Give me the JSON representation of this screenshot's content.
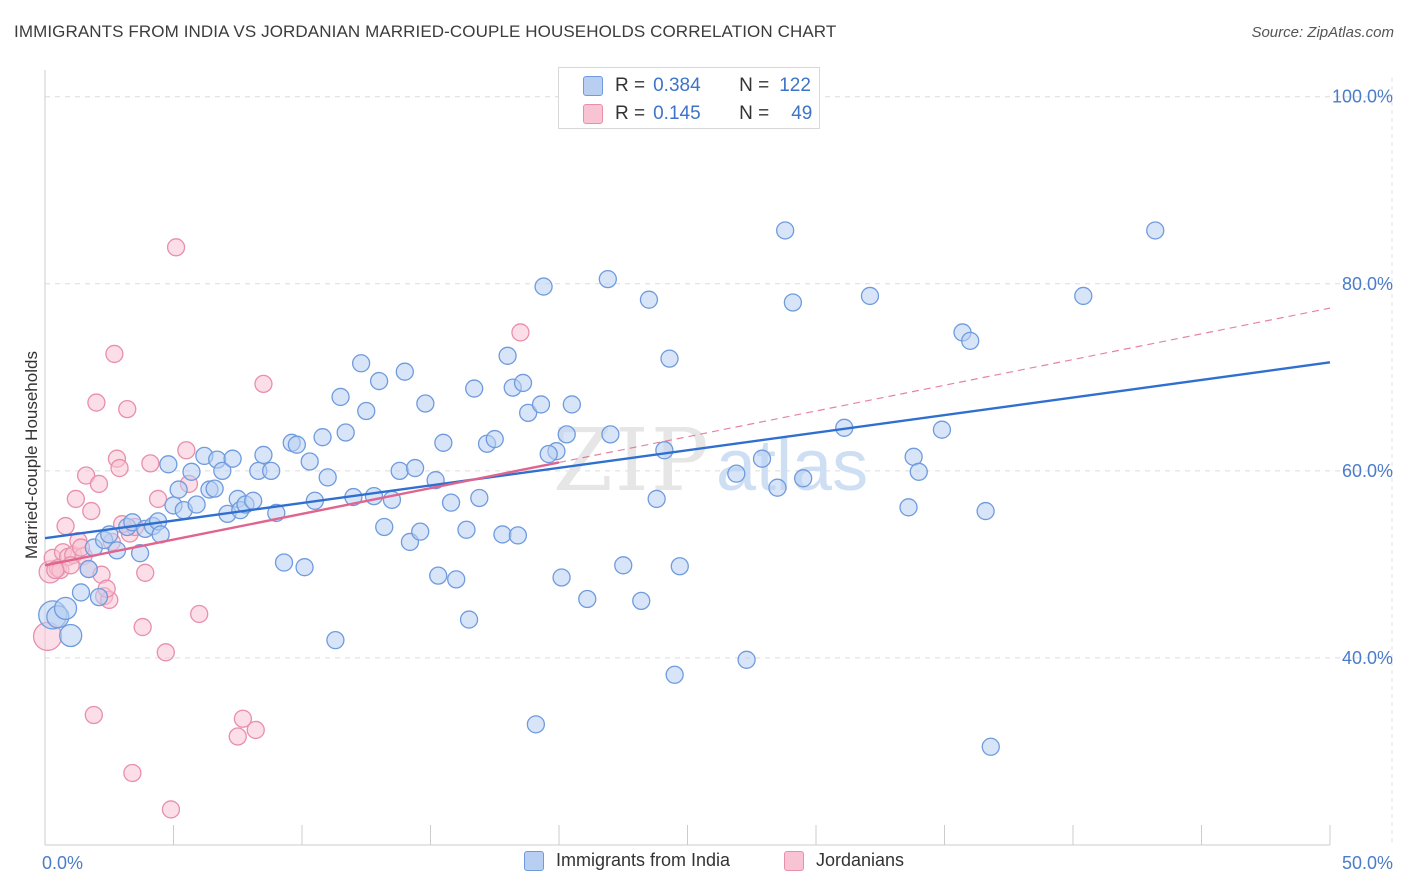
{
  "header": {
    "title": "IMMIGRANTS FROM INDIA VS JORDANIAN MARRIED-COUPLE HOUSEHOLDS CORRELATION CHART",
    "source": "Source: ZipAtlas.com"
  },
  "watermark": {
    "zip": "ZIP",
    "atlas": "atlas"
  },
  "legend": {
    "r_label": "R =",
    "n_label": "N =",
    "rows": [
      {
        "r": "0.384",
        "n": "122"
      },
      {
        "r": "0.145",
        "n": "49"
      }
    ]
  },
  "chart_data": {
    "type": "scatter",
    "title": "IMMIGRANTS FROM INDIA VS JORDANIAN MARRIED-COUPLE HOUSEHOLDS CORRELATION CHART",
    "xlabel": "",
    "ylabel": "Married-couple Households",
    "xlim": [
      0,
      50
    ],
    "ylim": [
      20,
      102
    ],
    "x_tick_labels": [
      "0.0%",
      "50.0%"
    ],
    "y_ticks": [
      40,
      60,
      80,
      100
    ],
    "y_tick_labels": [
      "40.0%",
      "60.0%",
      "80.0%",
      "100.0%"
    ],
    "grid": true,
    "legend_position": "top-center",
    "colors": {
      "india_fill": "#b8cff2",
      "india_stroke": "#6f9bde",
      "india_line": "#2f6fd0",
      "jordan_fill": "#f8c3d3",
      "jordan_stroke": "#e88fab",
      "jordan_line": "#e0648e"
    },
    "series": [
      {
        "name": "Immigrants from India",
        "r": 0.384,
        "n": 122,
        "trend": {
          "x": [
            0,
            50
          ],
          "y": [
            52.8,
            71.6
          ]
        },
        "points": [
          {
            "x": 0.3,
            "y": 44.6,
            "s": 3
          },
          {
            "x": 0.5,
            "y": 44.4,
            "s": 2
          },
          {
            "x": 0.8,
            "y": 45.3,
            "s": 2
          },
          {
            "x": 1.0,
            "y": 42.4,
            "s": 2
          },
          {
            "x": 1.4,
            "y": 47.0,
            "s": 1
          },
          {
            "x": 1.7,
            "y": 49.5,
            "s": 1
          },
          {
            "x": 1.9,
            "y": 51.8,
            "s": 1
          },
          {
            "x": 2.1,
            "y": 46.5,
            "s": 1
          },
          {
            "x": 2.3,
            "y": 52.6,
            "s": 1
          },
          {
            "x": 2.5,
            "y": 53.2,
            "s": 1
          },
          {
            "x": 2.8,
            "y": 51.5,
            "s": 1
          },
          {
            "x": 3.2,
            "y": 54.0,
            "s": 1
          },
          {
            "x": 3.4,
            "y": 54.5,
            "s": 1
          },
          {
            "x": 3.7,
            "y": 51.2,
            "s": 1
          },
          {
            "x": 3.9,
            "y": 53.8,
            "s": 1
          },
          {
            "x": 4.2,
            "y": 54.1,
            "s": 1
          },
          {
            "x": 4.4,
            "y": 54.6,
            "s": 1
          },
          {
            "x": 4.5,
            "y": 53.2,
            "s": 1
          },
          {
            "x": 4.8,
            "y": 60.7,
            "s": 1
          },
          {
            "x": 5.0,
            "y": 56.3,
            "s": 1
          },
          {
            "x": 5.2,
            "y": 58.0,
            "s": 1
          },
          {
            "x": 5.4,
            "y": 55.8,
            "s": 1
          },
          {
            "x": 5.7,
            "y": 59.9,
            "s": 1
          },
          {
            "x": 5.9,
            "y": 56.4,
            "s": 1
          },
          {
            "x": 6.2,
            "y": 61.6,
            "s": 1
          },
          {
            "x": 6.4,
            "y": 58.0,
            "s": 1
          },
          {
            "x": 6.6,
            "y": 58.1,
            "s": 1
          },
          {
            "x": 6.7,
            "y": 61.2,
            "s": 1
          },
          {
            "x": 6.9,
            "y": 60.0,
            "s": 1
          },
          {
            "x": 7.1,
            "y": 55.4,
            "s": 1
          },
          {
            "x": 7.3,
            "y": 61.3,
            "s": 1
          },
          {
            "x": 7.5,
            "y": 57.0,
            "s": 1
          },
          {
            "x": 7.6,
            "y": 55.8,
            "s": 1
          },
          {
            "x": 7.8,
            "y": 56.4,
            "s": 1
          },
          {
            "x": 8.1,
            "y": 56.8,
            "s": 1
          },
          {
            "x": 8.3,
            "y": 60.0,
            "s": 1
          },
          {
            "x": 8.5,
            "y": 61.7,
            "s": 1
          },
          {
            "x": 8.8,
            "y": 60.0,
            "s": 1
          },
          {
            "x": 9.0,
            "y": 55.5,
            "s": 1
          },
          {
            "x": 9.3,
            "y": 50.2,
            "s": 1
          },
          {
            "x": 9.6,
            "y": 63.0,
            "s": 1
          },
          {
            "x": 9.8,
            "y": 62.8,
            "s": 1
          },
          {
            "x": 10.1,
            "y": 49.7,
            "s": 1
          },
          {
            "x": 10.3,
            "y": 61.0,
            "s": 1
          },
          {
            "x": 10.5,
            "y": 56.8,
            "s": 1
          },
          {
            "x": 10.8,
            "y": 63.6,
            "s": 1
          },
          {
            "x": 11.0,
            "y": 59.3,
            "s": 1
          },
          {
            "x": 11.3,
            "y": 41.9,
            "s": 1
          },
          {
            "x": 11.5,
            "y": 67.9,
            "s": 1
          },
          {
            "x": 11.7,
            "y": 64.1,
            "s": 1
          },
          {
            "x": 12.0,
            "y": 57.2,
            "s": 1
          },
          {
            "x": 12.3,
            "y": 71.5,
            "s": 1
          },
          {
            "x": 12.5,
            "y": 66.4,
            "s": 1
          },
          {
            "x": 12.8,
            "y": 57.3,
            "s": 1
          },
          {
            "x": 13.0,
            "y": 69.6,
            "s": 1
          },
          {
            "x": 13.2,
            "y": 54.0,
            "s": 1
          },
          {
            "x": 13.5,
            "y": 56.9,
            "s": 1
          },
          {
            "x": 13.8,
            "y": 60.0,
            "s": 1
          },
          {
            "x": 14.0,
            "y": 70.6,
            "s": 1
          },
          {
            "x": 14.2,
            "y": 52.4,
            "s": 1
          },
          {
            "x": 14.4,
            "y": 60.3,
            "s": 1
          },
          {
            "x": 14.6,
            "y": 53.5,
            "s": 1
          },
          {
            "x": 14.8,
            "y": 67.2,
            "s": 1
          },
          {
            "x": 15.2,
            "y": 59.0,
            "s": 1
          },
          {
            "x": 15.3,
            "y": 48.8,
            "s": 1
          },
          {
            "x": 15.5,
            "y": 63.0,
            "s": 1
          },
          {
            "x": 15.8,
            "y": 56.6,
            "s": 1
          },
          {
            "x": 16.0,
            "y": 48.4,
            "s": 1
          },
          {
            "x": 16.4,
            "y": 53.7,
            "s": 1
          },
          {
            "x": 16.5,
            "y": 44.1,
            "s": 1
          },
          {
            "x": 16.7,
            "y": 68.8,
            "s": 1
          },
          {
            "x": 16.9,
            "y": 57.1,
            "s": 1
          },
          {
            "x": 17.2,
            "y": 62.9,
            "s": 1
          },
          {
            "x": 17.5,
            "y": 63.4,
            "s": 1
          },
          {
            "x": 17.8,
            "y": 53.2,
            "s": 1
          },
          {
            "x": 18.0,
            "y": 72.3,
            "s": 1
          },
          {
            "x": 18.2,
            "y": 68.9,
            "s": 1
          },
          {
            "x": 18.4,
            "y": 53.1,
            "s": 1
          },
          {
            "x": 18.6,
            "y": 69.4,
            "s": 1
          },
          {
            "x": 18.8,
            "y": 66.2,
            "s": 1
          },
          {
            "x": 19.1,
            "y": 32.9,
            "s": 1
          },
          {
            "x": 19.3,
            "y": 67.1,
            "s": 1
          },
          {
            "x": 19.4,
            "y": 79.7,
            "s": 1
          },
          {
            "x": 19.9,
            "y": 62.1,
            "s": 1
          },
          {
            "x": 20.1,
            "y": 48.6,
            "s": 1
          },
          {
            "x": 20.3,
            "y": 63.9,
            "s": 1
          },
          {
            "x": 20.5,
            "y": 67.1,
            "s": 1
          },
          {
            "x": 21.1,
            "y": 46.3,
            "s": 1
          },
          {
            "x": 21.9,
            "y": 80.5,
            "s": 1
          },
          {
            "x": 22.0,
            "y": 63.9,
            "s": 1
          },
          {
            "x": 22.5,
            "y": 49.9,
            "s": 1
          },
          {
            "x": 23.2,
            "y": 46.1,
            "s": 1
          },
          {
            "x": 23.5,
            "y": 78.3,
            "s": 1
          },
          {
            "x": 23.8,
            "y": 57.0,
            "s": 1
          },
          {
            "x": 24.1,
            "y": 62.2,
            "s": 1
          },
          {
            "x": 24.3,
            "y": 72.0,
            "s": 1
          },
          {
            "x": 24.5,
            "y": 38.2,
            "s": 1
          },
          {
            "x": 24.7,
            "y": 49.8,
            "s": 1
          },
          {
            "x": 26.9,
            "y": 59.7,
            "s": 1
          },
          {
            "x": 27.3,
            "y": 39.8,
            "s": 1
          },
          {
            "x": 27.9,
            "y": 61.3,
            "s": 1
          },
          {
            "x": 28.5,
            "y": 58.2,
            "s": 1
          },
          {
            "x": 28.8,
            "y": 85.7,
            "s": 1
          },
          {
            "x": 29.1,
            "y": 78.0,
            "s": 1
          },
          {
            "x": 29.5,
            "y": 59.2,
            "s": 1
          },
          {
            "x": 31.1,
            "y": 64.6,
            "s": 1
          },
          {
            "x": 32.1,
            "y": 78.7,
            "s": 1
          },
          {
            "x": 33.6,
            "y": 56.1,
            "s": 1
          },
          {
            "x": 33.8,
            "y": 61.5,
            "s": 1
          },
          {
            "x": 34.0,
            "y": 59.9,
            "s": 1
          },
          {
            "x": 34.9,
            "y": 64.4,
            "s": 1
          },
          {
            "x": 35.7,
            "y": 74.8,
            "s": 1
          },
          {
            "x": 36.0,
            "y": 73.9,
            "s": 1
          },
          {
            "x": 36.6,
            "y": 55.7,
            "s": 1
          },
          {
            "x": 36.8,
            "y": 30.5,
            "s": 1
          },
          {
            "x": 40.4,
            "y": 78.7,
            "s": 1
          },
          {
            "x": 43.2,
            "y": 85.7,
            "s": 1
          },
          {
            "x": 19.6,
            "y": 61.8,
            "s": 1
          }
        ]
      },
      {
        "name": "Jordanians",
        "r": 0.145,
        "n": 49,
        "trend": {
          "x": [
            0,
            20
          ],
          "y": [
            49.9,
            60.9
          ]
        },
        "points": [
          {
            "x": 0.1,
            "y": 42.3,
            "s": 3
          },
          {
            "x": 0.2,
            "y": 49.2,
            "s": 2
          },
          {
            "x": 0.3,
            "y": 50.7,
            "s": 1
          },
          {
            "x": 0.5,
            "y": 49.6,
            "s": 1
          },
          {
            "x": 0.6,
            "y": 49.4,
            "s": 1
          },
          {
            "x": 0.7,
            "y": 51.3,
            "s": 1
          },
          {
            "x": 0.8,
            "y": 54.1,
            "s": 1
          },
          {
            "x": 0.9,
            "y": 50.8,
            "s": 1
          },
          {
            "x": 1.1,
            "y": 51.0,
            "s": 1
          },
          {
            "x": 1.2,
            "y": 57.0,
            "s": 1
          },
          {
            "x": 1.3,
            "y": 52.5,
            "s": 1
          },
          {
            "x": 1.5,
            "y": 50.9,
            "s": 1
          },
          {
            "x": 1.6,
            "y": 59.5,
            "s": 1
          },
          {
            "x": 1.7,
            "y": 49.5,
            "s": 1
          },
          {
            "x": 1.8,
            "y": 55.7,
            "s": 1
          },
          {
            "x": 1.9,
            "y": 33.9,
            "s": 1
          },
          {
            "x": 2.0,
            "y": 67.3,
            "s": 1
          },
          {
            "x": 2.1,
            "y": 58.6,
            "s": 1
          },
          {
            "x": 2.3,
            "y": 46.6,
            "s": 1
          },
          {
            "x": 2.5,
            "y": 46.2,
            "s": 1
          },
          {
            "x": 2.6,
            "y": 52.4,
            "s": 1
          },
          {
            "x": 2.7,
            "y": 72.5,
            "s": 1
          },
          {
            "x": 2.8,
            "y": 61.3,
            "s": 1
          },
          {
            "x": 2.9,
            "y": 60.3,
            "s": 1
          },
          {
            "x": 3.2,
            "y": 66.6,
            "s": 1
          },
          {
            "x": 3.3,
            "y": 53.3,
            "s": 1
          },
          {
            "x": 3.4,
            "y": 27.7,
            "s": 1
          },
          {
            "x": 3.5,
            "y": 54.0,
            "s": 1
          },
          {
            "x": 3.8,
            "y": 43.3,
            "s": 1
          },
          {
            "x": 3.9,
            "y": 49.1,
            "s": 1
          },
          {
            "x": 4.1,
            "y": 60.8,
            "s": 1
          },
          {
            "x": 4.4,
            "y": 57.0,
            "s": 1
          },
          {
            "x": 4.7,
            "y": 40.6,
            "s": 1
          },
          {
            "x": 4.9,
            "y": 23.8,
            "s": 1
          },
          {
            "x": 5.1,
            "y": 83.9,
            "s": 1
          },
          {
            "x": 5.5,
            "y": 62.2,
            "s": 1
          },
          {
            "x": 5.6,
            "y": 58.6,
            "s": 1
          },
          {
            "x": 6.0,
            "y": 44.7,
            "s": 1
          },
          {
            "x": 7.5,
            "y": 31.6,
            "s": 1
          },
          {
            "x": 7.7,
            "y": 33.5,
            "s": 1
          },
          {
            "x": 8.2,
            "y": 32.3,
            "s": 1
          },
          {
            "x": 8.5,
            "y": 69.3,
            "s": 1
          },
          {
            "x": 18.5,
            "y": 74.8,
            "s": 1
          },
          {
            "x": 2.2,
            "y": 48.9,
            "s": 1
          },
          {
            "x": 1.0,
            "y": 49.9,
            "s": 1
          },
          {
            "x": 0.4,
            "y": 49.4,
            "s": 1
          },
          {
            "x": 2.4,
            "y": 47.4,
            "s": 1
          },
          {
            "x": 1.4,
            "y": 51.8,
            "s": 1
          },
          {
            "x": 3.0,
            "y": 54.3,
            "s": 1
          }
        ]
      }
    ]
  }
}
